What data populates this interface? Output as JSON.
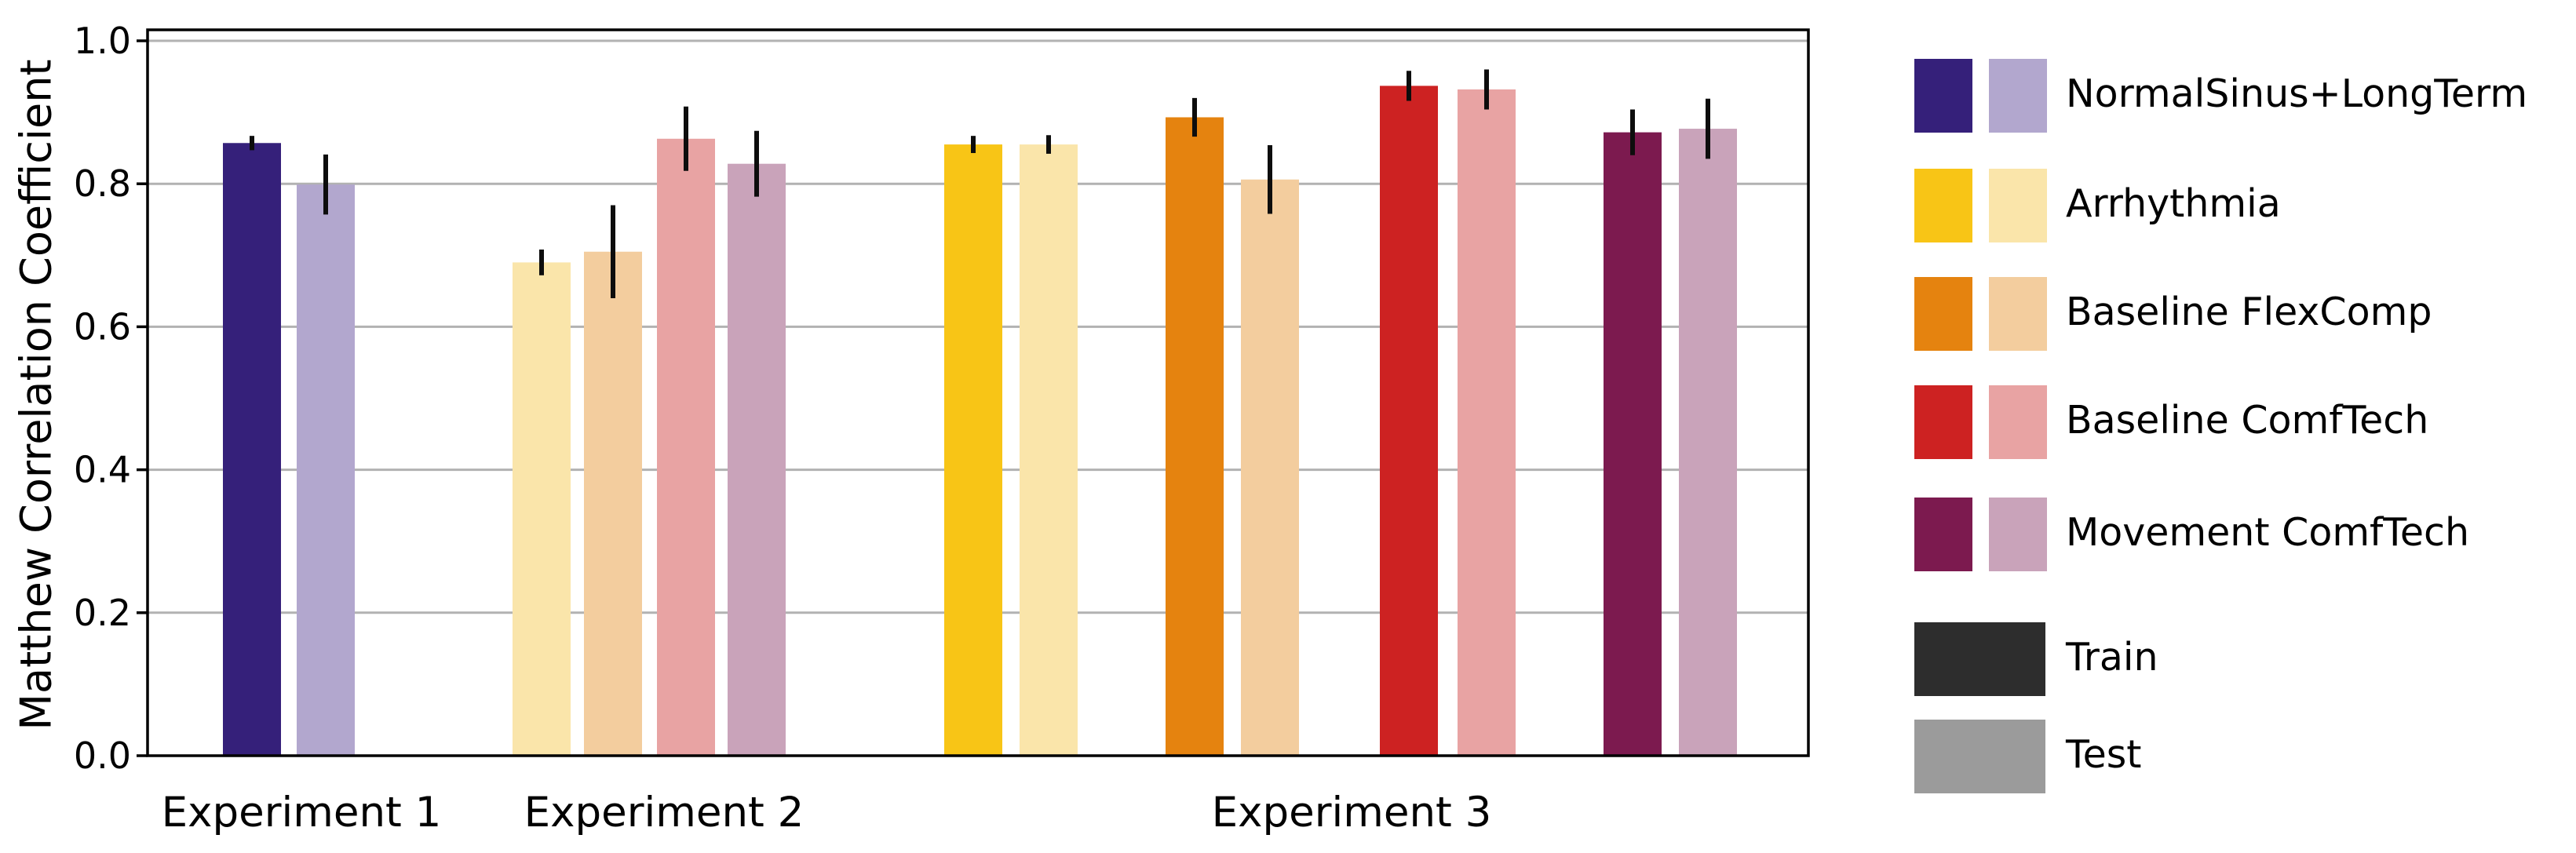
{
  "chart_data": {
    "type": "bar",
    "title": "",
    "xlabel": "",
    "ylabel": "Matthew Correlation Coefficient",
    "ylim": [
      0.0,
      1.01
    ],
    "yticks": [
      "0.0",
      "0.2",
      "0.4",
      "0.6",
      "0.8",
      "1.0"
    ],
    "ytick_values": [
      0.0,
      0.2,
      0.4,
      0.6,
      0.8,
      1.0
    ],
    "grid": "horizontal gridlines at y ticks, light gray",
    "legend_position": "outside right",
    "error_bars": "vertical black lines, no caps",
    "categories": [
      "Experiment 1",
      "Experiment 2",
      "Experiment 3"
    ],
    "groups": [
      {
        "label": "Experiment 1",
        "bars": [
          {
            "condition": "NormalSinus+LongTerm",
            "split": "Train",
            "value": 0.857,
            "err": 0.01
          },
          {
            "condition": "NormalSinus+LongTerm",
            "split": "Test",
            "value": 0.799,
            "err": 0.042
          }
        ]
      },
      {
        "label": "Experiment 2",
        "bars": [
          {
            "condition": "Arrhythmia",
            "split": "Test",
            "value": 0.69,
            "err": 0.018
          },
          {
            "condition": "Baseline FlexComp",
            "split": "Test",
            "value": 0.705,
            "err": 0.065
          },
          {
            "condition": "Baseline ComfTech",
            "split": "Test",
            "value": 0.863,
            "err": 0.045
          },
          {
            "condition": "Movement ComfTech",
            "split": "Test",
            "value": 0.828,
            "err": 0.046
          }
        ]
      },
      {
        "label": "Experiment 3",
        "bars": [
          {
            "condition": "Arrhythmia",
            "split": "Train",
            "value": 0.855,
            "err": 0.012
          },
          {
            "condition": "Arrhythmia",
            "split": "Test",
            "value": 0.855,
            "err": 0.013
          },
          {
            "condition": "Baseline FlexComp",
            "split": "Train",
            "value": 0.893,
            "err": 0.027
          },
          {
            "condition": "Baseline FlexComp",
            "split": "Test",
            "value": 0.806,
            "err": 0.048
          },
          {
            "condition": "Baseline ComfTech",
            "split": "Train",
            "value": 0.937,
            "err": 0.021
          },
          {
            "condition": "Baseline ComfTech",
            "split": "Test",
            "value": 0.932,
            "err": 0.028
          },
          {
            "condition": "Movement ComfTech",
            "split": "Train",
            "value": 0.872,
            "err": 0.032
          },
          {
            "condition": "Movement ComfTech",
            "split": "Test",
            "value": 0.877,
            "err": 0.042
          }
        ]
      }
    ],
    "legend_conditions": [
      {
        "label": "NormalSinus+LongTerm",
        "train_color": "#35207a",
        "test_color": "#b2a7ce"
      },
      {
        "label": "Arrhythmia",
        "train_color": "#f8c516",
        "test_color": "#fae5aa"
      },
      {
        "label": "Baseline FlexComp",
        "train_color": "#e5830f",
        "test_color": "#f3cd9e"
      },
      {
        "label": "Baseline ComfTech",
        "train_color": "#cd2222",
        "test_color": "#e8a3a3"
      },
      {
        "label": "Movement ComfTech",
        "train_color": "#7c1a4f",
        "test_color": "#c9a3ba"
      }
    ],
    "legend_splits": [
      {
        "label": "Train",
        "color": "#2d2d2d"
      },
      {
        "label": "Test",
        "color": "#9b9b9b"
      }
    ],
    "colors": {
      "axis_spine": "#000000",
      "gridline": "#b2b2b2",
      "error_bar": "#0d0d0d",
      "background": "#ffffff",
      "text": "#000000"
    }
  }
}
